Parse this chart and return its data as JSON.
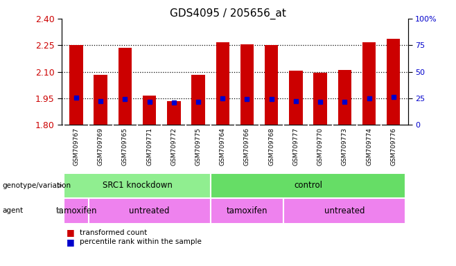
{
  "title": "GDS4095 / 205656_at",
  "samples": [
    "GSM709767",
    "GSM709769",
    "GSM709765",
    "GSM709771",
    "GSM709772",
    "GSM709775",
    "GSM709764",
    "GSM709766",
    "GSM709768",
    "GSM709777",
    "GSM709770",
    "GSM709773",
    "GSM709774",
    "GSM709776"
  ],
  "bar_tops": [
    2.25,
    2.085,
    2.235,
    1.965,
    1.935,
    2.085,
    2.265,
    2.255,
    2.25,
    2.105,
    2.095,
    2.11,
    2.265,
    2.285
  ],
  "bar_base": 1.8,
  "blue_dot_vals": [
    1.955,
    1.935,
    1.948,
    1.93,
    1.925,
    1.932,
    1.952,
    1.948,
    1.948,
    1.934,
    1.93,
    1.93,
    1.952,
    1.958
  ],
  "ylim_left": [
    1.8,
    2.4
  ],
  "ylim_right": [
    0,
    100
  ],
  "yticks_left": [
    1.8,
    1.95,
    2.1,
    2.25,
    2.4
  ],
  "yticks_right": [
    0,
    25,
    50,
    75,
    100
  ],
  "ytick_right_labels": [
    "0",
    "25",
    "50",
    "75",
    "100%"
  ],
  "grid_vals": [
    1.95,
    2.1,
    2.25
  ],
  "bar_color": "#cc0000",
  "dot_color": "#0000cc",
  "plot_bg": "#ffffff",
  "xticklabel_bg": "#cccccc",
  "groups": [
    {
      "label": "SRC1 knockdown",
      "start": 0,
      "end": 5,
      "color": "#90ee90"
    },
    {
      "label": "control",
      "start": 6,
      "end": 13,
      "color": "#66dd66"
    }
  ],
  "agents": [
    {
      "label": "tamoxifen",
      "start": 0,
      "end": 0,
      "color": "#ee82ee"
    },
    {
      "label": "untreated",
      "start": 1,
      "end": 5,
      "color": "#ee82ee"
    },
    {
      "label": "tamoxifen",
      "start": 6,
      "end": 8,
      "color": "#ee82ee"
    },
    {
      "label": "untreated",
      "start": 9,
      "end": 13,
      "color": "#ee82ee"
    }
  ],
  "legend_items": [
    {
      "label": "transformed count",
      "color": "#cc0000"
    },
    {
      "label": "percentile rank within the sample",
      "color": "#0000cc"
    }
  ],
  "genotype_label": "genotype/variation",
  "agent_label": "agent",
  "bar_width": 0.55
}
